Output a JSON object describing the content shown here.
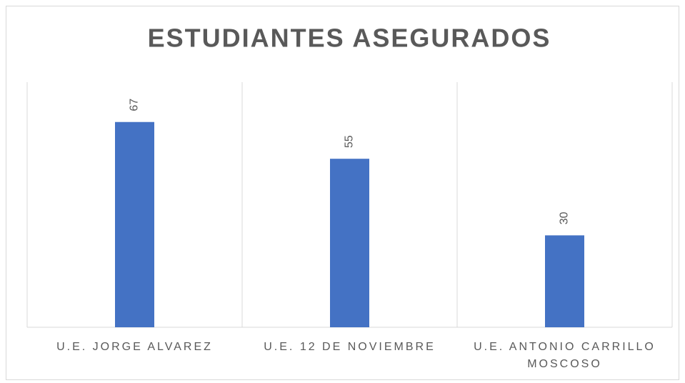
{
  "chart_data": {
    "type": "bar",
    "title": "ESTUDIANTES ASEGURADOS",
    "categories": [
      "U.E. JORGE ALVAREZ",
      "U.E. 12 DE NOVIEMBRE",
      "U.E. ANTONIO CARRILLO MOSCOSO"
    ],
    "values": [
      67,
      55,
      30
    ],
    "color": "#4472c4",
    "ylim": [
      0,
      80
    ]
  }
}
